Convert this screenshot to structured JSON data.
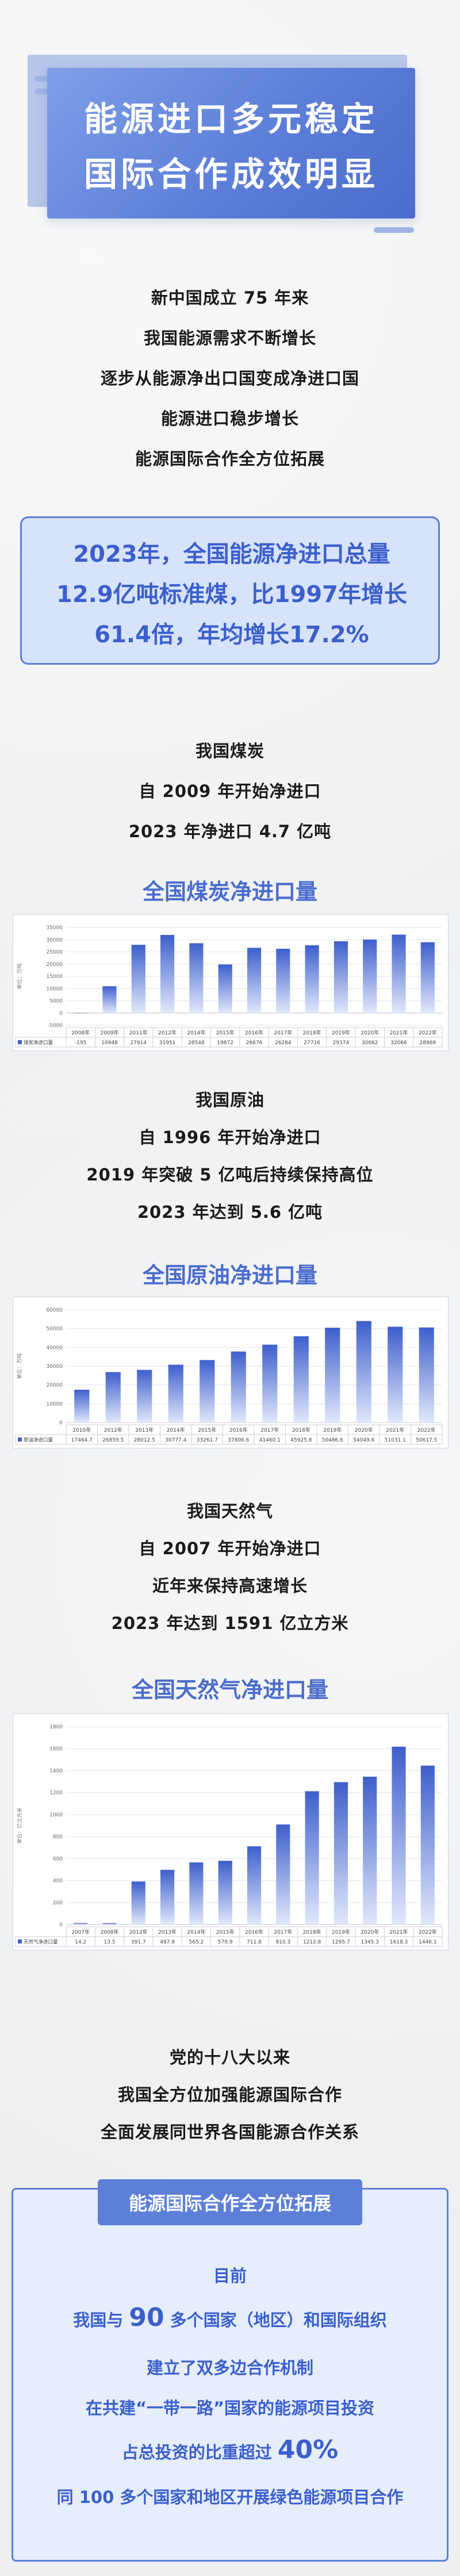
{
  "title": {
    "line1": "能源进口多元稳定",
    "line2": "国际合作成效明显"
  },
  "intro": [
    "新中国成立 75 年来",
    "我国能源需求不断增长",
    "逐步从能源净出口国变成净进口国",
    "能源进口稳步增长",
    "能源国际合作全方位拓展"
  ],
  "highlight": [
    "2023年，全国能源净进口总量",
    "12.9亿吨标准煤，比1997年增长",
    "61.4倍，年均增长17.2%"
  ],
  "coal": {
    "text": [
      "我国煤炭",
      "自 2009 年开始净进口",
      "2023 年净进口 4.7 亿吨"
    ]
  },
  "oil": {
    "text": [
      "我国原油",
      "自 1996 年开始净进口",
      "2019 年突破 5 亿吨后持续保持高位",
      "2023 年达到 5.6 亿吨"
    ]
  },
  "gas": {
    "text": [
      "我国天然气",
      "自 2007 年开始净进口",
      "近年来保持高速增长",
      "2023 年达到 1591 亿立方米"
    ]
  },
  "chart_data": [
    {
      "type": "bar",
      "title": "全国煤炭净进口量",
      "ylabel": "单位：万吨",
      "series": [
        {
          "name": "煤炭净进口量",
          "values": [
            -195,
            10948,
            27914,
            31951,
            28548,
            19872,
            26676,
            26284,
            27716,
            29374,
            30062,
            32066,
            28969
          ]
        }
      ],
      "categories": [
        "2008年",
        "2009年",
        "2011年",
        "2012年",
        "2014年",
        "2015年",
        "2016年",
        "2017年",
        "2018年",
        "2019年",
        "2020年",
        "2021年",
        "2022年"
      ],
      "ylim": [
        -5000,
        35000
      ],
      "yticks": [
        -5000,
        0,
        5000,
        10000,
        15000,
        20000,
        25000,
        30000,
        35000
      ],
      "value_labels": [
        "-195",
        "10948",
        "27914",
        "31951",
        "28548",
        "19872",
        "26676",
        "26284",
        "27716",
        "29374",
        "30062",
        "32066",
        "28969"
      ]
    },
    {
      "type": "bar",
      "title": "全国原油净进口量",
      "ylabel": "单位：万吨",
      "series": [
        {
          "name": "原油净进口量",
          "values": [
            17464.7,
            26859.5,
            28012.5,
            30777.4,
            33261.7,
            37806.6,
            41460.1,
            45925.8,
            50486.6,
            54049.6,
            51031.1,
            50617.5
          ]
        }
      ],
      "categories": [
        "2010年",
        "2012年",
        "2013年",
        "2014年",
        "2015年",
        "2016年",
        "2017年",
        "2018年",
        "2019年",
        "2020年",
        "2021年",
        "2022年"
      ],
      "ylim": [
        0,
        60000
      ],
      "yticks": [
        0,
        10000,
        20000,
        30000,
        40000,
        50000,
        60000
      ],
      "value_labels": [
        "17464.7",
        "26859.5",
        "28012.5",
        "30777.4",
        "33261.7",
        "37806.6",
        "41460.1",
        "45925.8",
        "50486.6",
        "54049.6",
        "51031.1",
        "50617.5"
      ]
    },
    {
      "type": "bar",
      "title": "全国天然气净进口量",
      "ylabel": "单位：亿立方米",
      "series": [
        {
          "name": "天然气净进口量",
          "values": [
            14.2,
            13.5,
            391.7,
            497.9,
            565.2,
            579.9,
            711.8,
            910.3,
            1212.8,
            1295.7,
            1345.3,
            1618.3,
            1446.1
          ]
        }
      ],
      "categories": [
        "2007年",
        "2008年",
        "2012年",
        "2013年",
        "2014年",
        "2015年",
        "2016年",
        "2017年",
        "2018年",
        "2019年",
        "2020年",
        "2021年",
        "2022年"
      ],
      "ylim": [
        0,
        1800
      ],
      "yticks": [
        0,
        200,
        400,
        600,
        800,
        1000,
        1200,
        1400,
        1600,
        1800
      ],
      "value_labels": [
        "14.2",
        "13.5",
        "391.7",
        "497.9",
        "565.2",
        "579.9",
        "711.8",
        "910.3",
        "1212.8",
        "1295.7",
        "1345.3",
        "1618.3",
        "1446.1"
      ]
    }
  ],
  "partyline": [
    "党的十八大以来",
    "我国全方位加强能源国际合作",
    "全面发展同世界各国能源合作关系"
  ],
  "coop": {
    "header": "能源国际合作全方位拓展",
    "lines": [
      "目前",
      "我国与",
      "90",
      "多个国家（地区）和国际组织",
      "建立了双多边合作机制",
      "在共建“一带一路”国家的能源项目投资",
      "占总投资的比重超过",
      "40%",
      "同 100 多个国家和地区开展绿色能源项目合作"
    ]
  },
  "colors": {
    "accent": "#5d7fd8",
    "accent_dark": "#3b5fcc",
    "bar_top": "#3e5fcc",
    "bar_bottom": "#e1e8fb"
  }
}
